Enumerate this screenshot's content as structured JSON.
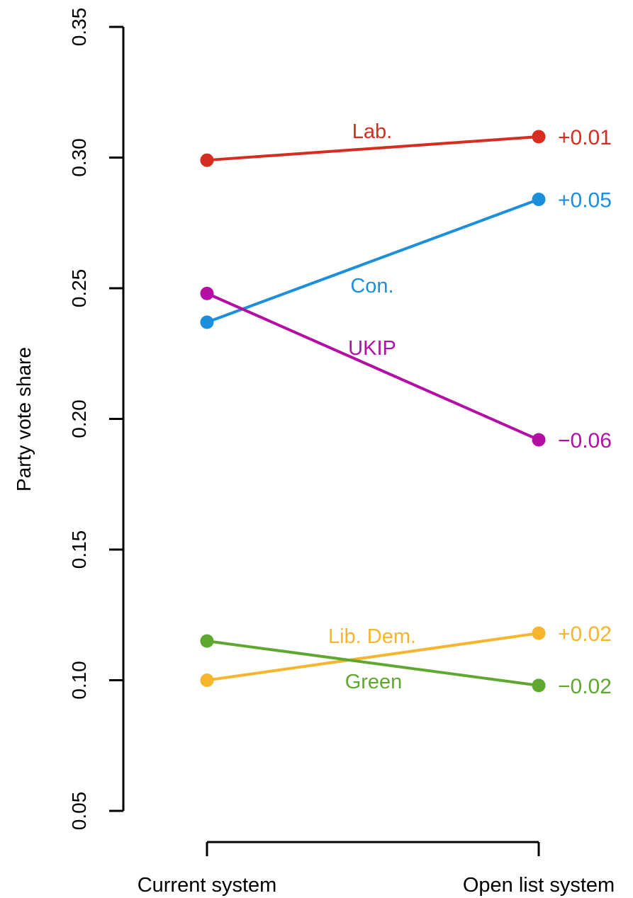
{
  "chart_data": {
    "type": "line",
    "title": "",
    "xlabel": "",
    "ylabel": "Party vote share",
    "ylim": [
      0.05,
      0.35
    ],
    "yticks": [
      0.05,
      0.1,
      0.15,
      0.2,
      0.25,
      0.3,
      0.35
    ],
    "ytick_labels": [
      "0.05",
      "0.10",
      "0.15",
      "0.20",
      "0.25",
      "0.30",
      "0.35"
    ],
    "categories": [
      "Current system",
      "Open list system"
    ],
    "grid": false,
    "legend": "none",
    "series": [
      {
        "name": "Lab.",
        "color": "#d62d20",
        "values": [
          0.299,
          0.308
        ],
        "change_label": "+0.01"
      },
      {
        "name": "Con.",
        "color": "#1b8fdb",
        "values": [
          0.237,
          0.284
        ],
        "change_label": "+0.05"
      },
      {
        "name": "UKIP",
        "color": "#b40fa5",
        "values": [
          0.248,
          0.192
        ],
        "change_label": "−0.06"
      },
      {
        "name": "Lib. Dem.",
        "color": "#f7b52e",
        "values": [
          0.1,
          0.118
        ],
        "change_label": "+0.02"
      },
      {
        "name": "Green",
        "color": "#5fa830",
        "values": [
          0.115,
          0.098
        ],
        "change_label": "−0.02"
      }
    ]
  }
}
